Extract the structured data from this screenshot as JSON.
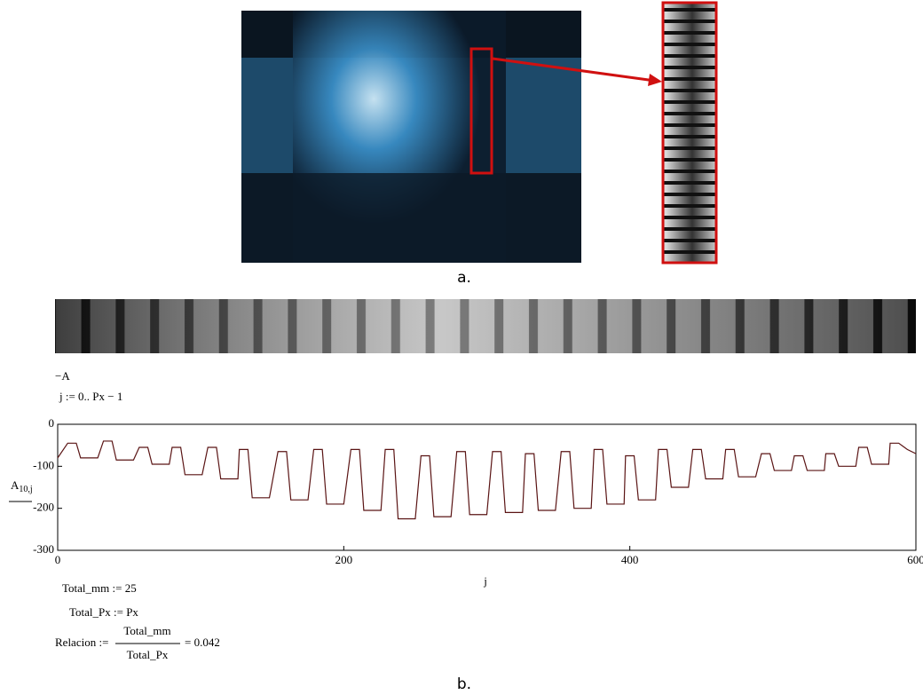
{
  "figure": {
    "caption_a": "a.",
    "caption_b": "b."
  },
  "worksheet": {
    "neg_a": "−A",
    "range_def": "j := 0.. Px − 1",
    "total_mm": "Total_mm := 25",
    "total_px": "Total_Px := Px",
    "relacion": "Relacion :=",
    "numerator": "Total_mm",
    "denominator": "Total_Px",
    "result": "= 0.042"
  },
  "chart_data": {
    "type": "line",
    "x_label": "j",
    "y_label": "A",
    "y_label_sub": "10,j",
    "x": [
      0,
      7,
      13,
      16,
      28,
      32,
      38,
      41,
      53,
      57,
      63,
      66,
      78,
      80,
      86,
      89,
      101,
      105,
      111,
      114,
      126,
      127,
      133,
      136,
      148,
      154,
      160,
      163,
      175,
      179,
      185,
      188,
      200,
      205,
      211,
      214,
      226,
      229,
      235,
      238,
      250,
      254,
      260,
      263,
      275,
      279,
      285,
      288,
      300,
      304,
      310,
      313,
      325,
      327,
      333,
      336,
      348,
      352,
      358,
      361,
      373,
      375,
      381,
      384,
      396,
      397,
      403,
      406,
      418,
      420,
      426,
      429,
      441,
      444,
      450,
      453,
      465,
      467,
      473,
      476,
      488,
      492,
      498,
      501,
      513,
      515,
      521,
      524,
      536,
      537,
      543,
      546,
      558,
      560,
      566,
      569,
      581,
      582,
      588,
      594,
      600
    ],
    "series": [
      {
        "color": "#5a1414",
        "values": [
          -80,
          -45,
          -45,
          -80,
          -80,
          -40,
          -40,
          -85,
          -85,
          -55,
          -55,
          -95,
          -95,
          -55,
          -55,
          -120,
          -120,
          -55,
          -55,
          -130,
          -130,
          -60,
          -60,
          -175,
          -175,
          -65,
          -65,
          -180,
          -180,
          -60,
          -60,
          -190,
          -190,
          -60,
          -60,
          -205,
          -205,
          -60,
          -60,
          -225,
          -225,
          -75,
          -75,
          -220,
          -220,
          -65,
          -65,
          -215,
          -215,
          -65,
          -65,
          -210,
          -210,
          -70,
          -70,
          -205,
          -205,
          -65,
          -65,
          -200,
          -200,
          -60,
          -60,
          -190,
          -190,
          -75,
          -75,
          -180,
          -180,
          -60,
          -60,
          -150,
          -150,
          -60,
          -60,
          -130,
          -130,
          -60,
          -60,
          -125,
          -125,
          -70,
          -70,
          -110,
          -110,
          -75,
          -75,
          -110,
          -110,
          -70,
          -70,
          -100,
          -100,
          -55,
          -55,
          -95,
          -95,
          -45,
          -45,
          -60,
          -70
        ]
      }
    ],
    "xlim": [
      0,
      600
    ],
    "xticks": [
      0,
      200,
      400,
      600
    ],
    "ylim": [
      -300,
      0
    ],
    "yticks": [
      0,
      -100,
      -200,
      -300
    ],
    "grid": false
  }
}
